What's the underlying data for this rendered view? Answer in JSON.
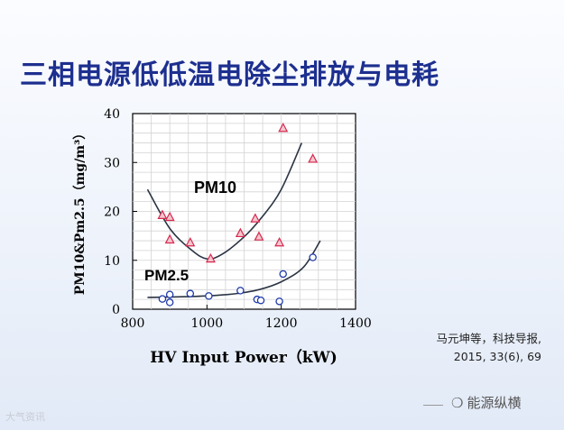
{
  "slide_title": "三相电源低低温电除尘排放与电耗",
  "citation": {
    "line1": "马元坤等，科技导报,",
    "line2": "2015, 33(6), 69"
  },
  "watermarks": {
    "bottom_left": "大气资讯",
    "bottom_right": "能源纵横"
  },
  "colors": {
    "title": "#1d2f8f",
    "pm10_marker": "#d6294f",
    "pm25_marker": "#1f3aa8",
    "fit_curve": "#2b3444",
    "grid": "#d3d3d3"
  },
  "chart_data": {
    "type": "scatter",
    "xlabel": "HV Input Power（kW)",
    "ylabel": "PM10&Pm2.5（mg/m³）",
    "xlim": [
      800,
      1400
    ],
    "ylim": [
      0,
      40
    ],
    "xticks": [
      800,
      1000,
      1200,
      1400
    ],
    "yticks": [
      0,
      10,
      20,
      30,
      40
    ],
    "grid": true,
    "series": [
      {
        "name": "PM10",
        "marker": "triangle",
        "points": [
          [
            880,
            19.2
          ],
          [
            900,
            18.8
          ],
          [
            900,
            14.2
          ],
          [
            955,
            13.6
          ],
          [
            1010,
            10.3
          ],
          [
            1090,
            15.5
          ],
          [
            1130,
            18.5
          ],
          [
            1140,
            14.8
          ],
          [
            1195,
            13.6
          ],
          [
            1205,
            37.0
          ],
          [
            1285,
            30.7
          ]
        ],
        "fit": [
          [
            840,
            24.5
          ],
          [
            900,
            16.5
          ],
          [
            960,
            12.0
          ],
          [
            1000,
            10.3
          ],
          [
            1040,
            11.2
          ],
          [
            1100,
            14.8
          ],
          [
            1150,
            19.0
          ],
          [
            1200,
            24.5
          ],
          [
            1255,
            34.0
          ]
        ]
      },
      {
        "name": "PM2.5",
        "marker": "circle",
        "points": [
          [
            880,
            2.1
          ],
          [
            900,
            3.0
          ],
          [
            900,
            1.4
          ],
          [
            955,
            3.2
          ],
          [
            1005,
            2.7
          ],
          [
            1090,
            3.8
          ],
          [
            1135,
            2.0
          ],
          [
            1145,
            1.8
          ],
          [
            1195,
            1.6
          ],
          [
            1205,
            7.2
          ],
          [
            1285,
            10.6
          ]
        ],
        "fit": [
          [
            840,
            2.4
          ],
          [
            900,
            2.5
          ],
          [
            960,
            2.6
          ],
          [
            1020,
            2.8
          ],
          [
            1080,
            3.2
          ],
          [
            1140,
            4.0
          ],
          [
            1200,
            5.6
          ],
          [
            1260,
            8.6
          ],
          [
            1305,
            14.0
          ]
        ]
      }
    ],
    "annotations": [
      "PM10",
      "PM2.5"
    ]
  }
}
